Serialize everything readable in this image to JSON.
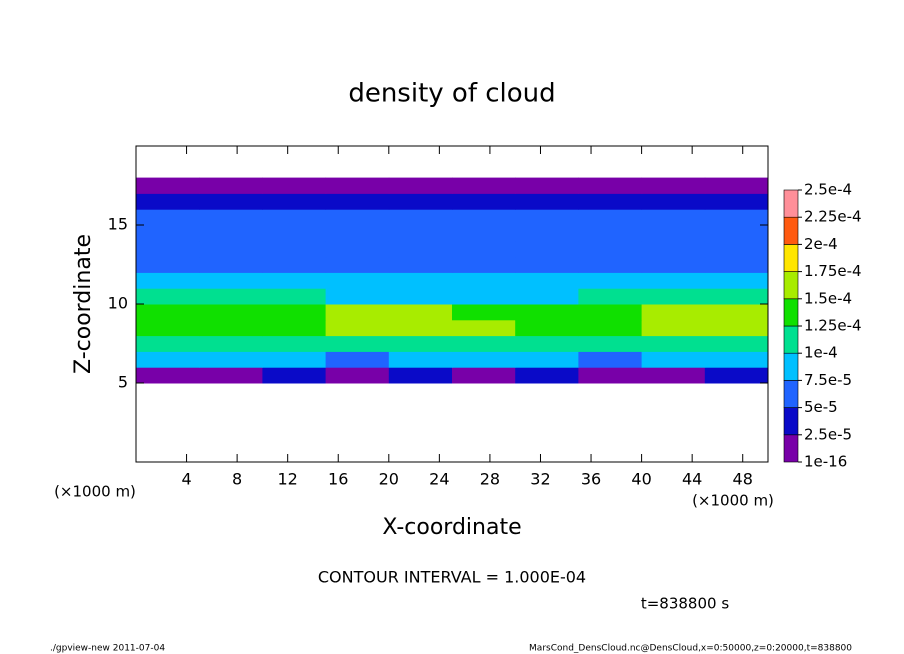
{
  "chart_data": {
    "type": "heatmap",
    "title": "density of cloud",
    "xlabel": "X-coordinate",
    "ylabel": "Z-coordinate",
    "xunit": "(×1000 m)",
    "yunit": "(×1000 m)",
    "xlim": [
      0,
      50
    ],
    "ylim": [
      0,
      20
    ],
    "xticks": [
      4,
      8,
      12,
      16,
      20,
      24,
      28,
      32,
      36,
      40,
      44,
      48
    ],
    "yticks": [
      5,
      10,
      15
    ],
    "grid": false,
    "x_edges": [
      0,
      5,
      10,
      15,
      20,
      25,
      30,
      35,
      40,
      45,
      50
    ],
    "z_edges": [
      5,
      6,
      7,
      8,
      9,
      10,
      11,
      12,
      13,
      14,
      15,
      16,
      17,
      18
    ],
    "values": [
      [
        1e-05,
        2e-05,
        3e-05,
        2e-05,
        3e-05,
        2e-05,
        3e-05,
        1e-05,
        2e-05,
        3e-05
      ],
      [
        8e-05,
        9e-05,
        8e-05,
        7e-05,
        8e-05,
        9e-05,
        8e-05,
        6e-05,
        8e-05,
        8e-05
      ],
      [
        0.00011,
        0.00012,
        0.00011,
        0.00011,
        0.00012,
        0.00012,
        0.00011,
        0.00011,
        0.00012,
        0.00012
      ],
      [
        0.00013,
        0.00014,
        0.00014,
        0.00015,
        0.00016,
        0.00015,
        0.00014,
        0.00013,
        0.00015,
        0.00016
      ],
      [
        0.00013,
        0.00014,
        0.00014,
        0.00015,
        0.00015,
        0.00014,
        0.00013,
        0.00013,
        0.00016,
        0.00016
      ],
      [
        0.000105,
        0.00011,
        0.0001,
        9e-05,
        9e-05,
        9e-05,
        9e-05,
        0.0001,
        0.00011,
        0.00011
      ],
      [
        8e-05,
        9e-05,
        8e-05,
        8e-05,
        7.5e-05,
        7.5e-05,
        8e-05,
        8e-05,
        9e-05,
        8e-05
      ],
      [
        7e-05,
        7e-05,
        7e-05,
        6e-05,
        6e-05,
        6e-05,
        7e-05,
        6e-05,
        6e-05,
        6e-05
      ],
      [
        6e-05,
        6e-05,
        6e-05,
        5.5e-05,
        5.5e-05,
        5.5e-05,
        6e-05,
        5.5e-05,
        5.5e-05,
        5.5e-05
      ],
      [
        6e-05,
        6e-05,
        5.5e-05,
        5.5e-05,
        5.5e-05,
        5e-05,
        5.5e-05,
        5.5e-05,
        5.5e-05,
        5.5e-05
      ],
      [
        5.5e-05,
        5e-05,
        5.5e-05,
        5e-05,
        5e-05,
        5e-05,
        5e-05,
        5e-05,
        5e-05,
        5e-05
      ],
      [
        3e-05,
        3e-05,
        3e-05,
        3e-05,
        3e-05,
        3e-05,
        3e-05,
        3e-05,
        3e-05,
        3e-05
      ],
      [
        1e-05,
        1e-05,
        1e-05,
        1e-05,
        1e-05,
        1e-05,
        1e-05,
        1e-05,
        1e-05,
        1e-05
      ]
    ],
    "levels": [
      {
        "value": 1e-16,
        "label": "1e-16"
      },
      {
        "value": 2.5e-05,
        "label": "2.5e-5"
      },
      {
        "value": 5e-05,
        "label": "5e-5"
      },
      {
        "value": 7.5e-05,
        "label": "7.5e-5"
      },
      {
        "value": 0.0001,
        "label": "1e-4"
      },
      {
        "value": 0.000125,
        "label": "1.25e-4"
      },
      {
        "value": 0.00015,
        "label": "1.5e-4"
      },
      {
        "value": 0.000175,
        "label": "1.75e-4"
      },
      {
        "value": 0.0002,
        "label": "2e-4"
      },
      {
        "value": 0.000225,
        "label": "2.25e-4"
      },
      {
        "value": 0.00025,
        "label": "2.5e-4"
      }
    ],
    "colors": [
      "#7800a8",
      "#0a0ac8",
      "#2064ff",
      "#00c0ff",
      "#00e090",
      "#10e000",
      "#a8ec00",
      "#ffe600",
      "#ff5a10",
      "#ff8f99"
    ],
    "contour_note": "CONTOUR INTERVAL = 1.000E-04",
    "time_note": "t=838800 s",
    "footer_left": "./gpview-new  2011-07-04",
    "footer_right": "MarsCond_DensCloud.nc@DensCloud,x=0:50000,z=0:20000,t=838800"
  }
}
